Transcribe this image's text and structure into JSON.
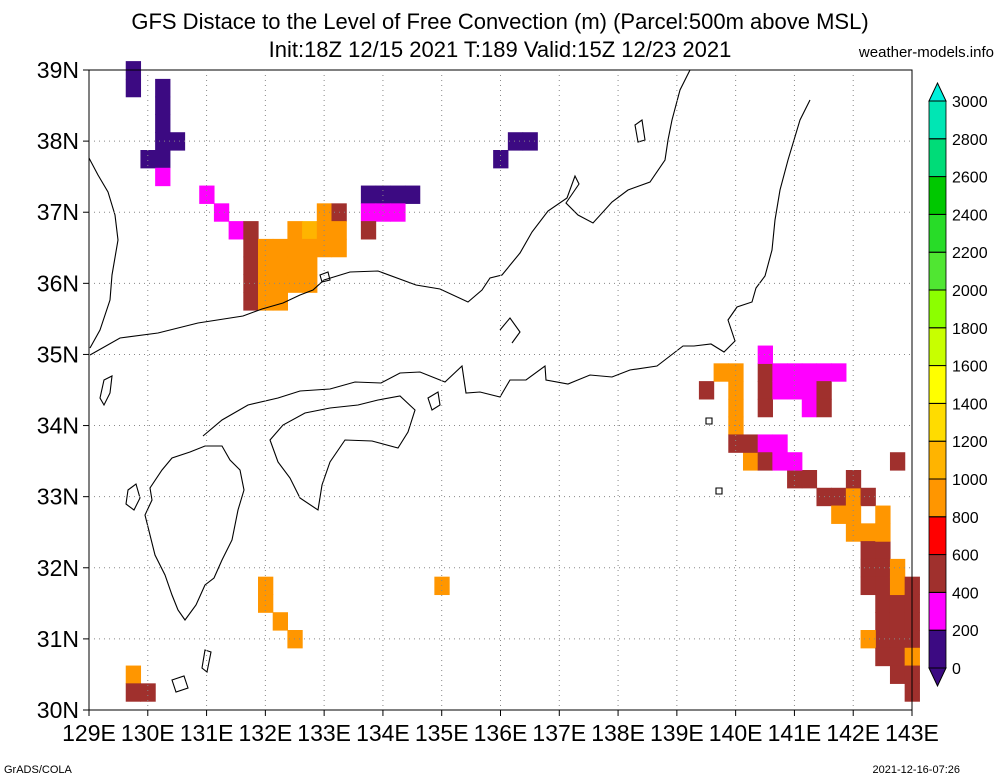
{
  "header": {
    "title": "GFS Distace to the Level of Free Convection (m) (Parcel:500m above MSL)",
    "subtitle": "Init:18Z 12/15 2021 T:189 Valid:15Z 12/23 2021",
    "site": "weather-models.info"
  },
  "footer": {
    "left": "GrADS/COLA",
    "right": "2021-12-16-07:26"
  },
  "map": {
    "lon_labels": [
      "129E",
      "130E",
      "131E",
      "132E",
      "133E",
      "134E",
      "135E",
      "136E",
      "137E",
      "138E",
      "139E",
      "140E",
      "141E",
      "142E",
      "143E"
    ],
    "lat_labels": [
      "30N",
      "31N",
      "32N",
      "33N",
      "34N",
      "35N",
      "36N",
      "37N",
      "38N",
      "39N"
    ]
  },
  "colorbar": {
    "labels": [
      "0",
      "200",
      "400",
      "600",
      "800",
      "1000",
      "1200",
      "1400",
      "1600",
      "1800",
      "2000",
      "2200",
      "2400",
      "2600",
      "2800",
      "3000"
    ],
    "colors": [
      "#3c0a82",
      "#ff00ff",
      "#a0302d",
      "#ff0000",
      "#ff9600",
      "#ffb400",
      "#ffdc00",
      "#ffff00",
      "#c8ff00",
      "#8cff00",
      "#50e632",
      "#28dc28",
      "#00c800",
      "#00dc78",
      "#00e6b4",
      "#00f0dc"
    ]
  },
  "cells": [
    {
      "lat": 38.75,
      "lon": 129.75,
      "v": 0
    },
    {
      "lat": 38.75,
      "lon": 130.25,
      "v": 0
    },
    {
      "lat": 38.5,
      "lon": 130.25,
      "v": 0
    },
    {
      "lat": 38.25,
      "lon": 130.25,
      "v": 0
    },
    {
      "lat": 38.0,
      "lon": 130.25,
      "v": 0
    },
    {
      "lat": 38.0,
      "lon": 130.5,
      "v": 0
    },
    {
      "lat": 39.0,
      "lon": 129.75,
      "v": 100
    },
    {
      "lat": 37.75,
      "lon": 130.0,
      "v": 100
    },
    {
      "lat": 37.75,
      "lon": 130.25,
      "v": 0
    },
    {
      "lat": 37.5,
      "lon": 130.25,
      "v": 300
    },
    {
      "lat": 37.25,
      "lon": 131.0,
      "v": 300
    },
    {
      "lat": 37.0,
      "lon": 131.25,
      "v": 300
    },
    {
      "lat": 36.75,
      "lon": 131.5,
      "v": 300
    },
    {
      "lat": 36.75,
      "lon": 131.75,
      "v": 500
    },
    {
      "lat": 36.5,
      "lon": 131.75,
      "v": 500
    },
    {
      "lat": 36.25,
      "lon": 131.75,
      "v": 500
    },
    {
      "lat": 36.0,
      "lon": 131.75,
      "v": 500
    },
    {
      "lat": 35.75,
      "lon": 131.75,
      "v": 500
    },
    {
      "lat": 36.5,
      "lon": 132.0,
      "v": 900
    },
    {
      "lat": 36.25,
      "lon": 132.0,
      "v": 900
    },
    {
      "lat": 36.0,
      "lon": 132.0,
      "v": 900
    },
    {
      "lat": 35.75,
      "lon": 132.0,
      "v": 900
    },
    {
      "lat": 36.5,
      "lon": 132.25,
      "v": 900
    },
    {
      "lat": 36.25,
      "lon": 132.25,
      "v": 900
    },
    {
      "lat": 36.0,
      "lon": 132.25,
      "v": 900
    },
    {
      "lat": 35.75,
      "lon": 132.25,
      "v": 900
    },
    {
      "lat": 36.75,
      "lon": 132.5,
      "v": 900
    },
    {
      "lat": 36.5,
      "lon": 132.5,
      "v": 900
    },
    {
      "lat": 36.25,
      "lon": 132.5,
      "v": 900
    },
    {
      "lat": 36.0,
      "lon": 132.5,
      "v": 900
    },
    {
      "lat": 36.75,
      "lon": 132.75,
      "v": 1100
    },
    {
      "lat": 36.5,
      "lon": 132.75,
      "v": 900
    },
    {
      "lat": 36.25,
      "lon": 132.75,
      "v": 900
    },
    {
      "lat": 36.0,
      "lon": 132.75,
      "v": 900
    },
    {
      "lat": 37.0,
      "lon": 133.0,
      "v": 900
    },
    {
      "lat": 36.75,
      "lon": 133.0,
      "v": 900
    },
    {
      "lat": 36.5,
      "lon": 133.0,
      "v": 900
    },
    {
      "lat": 37.0,
      "lon": 133.25,
      "v": 500
    },
    {
      "lat": 36.75,
      "lon": 133.25,
      "v": 900
    },
    {
      "lat": 36.5,
      "lon": 133.25,
      "v": 900
    },
    {
      "lat": 37.25,
      "lon": 133.75,
      "v": 100
    },
    {
      "lat": 37.25,
      "lon": 134.0,
      "v": 0
    },
    {
      "lat": 37.25,
      "lon": 134.25,
      "v": 0
    },
    {
      "lat": 37.25,
      "lon": 134.5,
      "v": 0
    },
    {
      "lat": 37.0,
      "lon": 133.75,
      "v": 300
    },
    {
      "lat": 37.0,
      "lon": 134.0,
      "v": 300
    },
    {
      "lat": 37.0,
      "lon": 134.25,
      "v": 300
    },
    {
      "lat": 36.75,
      "lon": 133.75,
      "v": 500
    },
    {
      "lat": 38.0,
      "lon": 136.25,
      "v": 100
    },
    {
      "lat": 38.0,
      "lon": 136.5,
      "v": 100
    },
    {
      "lat": 37.75,
      "lon": 136.0,
      "v": 100
    },
    {
      "lat": 31.75,
      "lon": 132.0,
      "v": 900
    },
    {
      "lat": 31.5,
      "lon": 132.0,
      "v": 900
    },
    {
      "lat": 31.25,
      "lon": 132.25,
      "v": 900
    },
    {
      "lat": 31.0,
      "lon": 132.5,
      "v": 900
    },
    {
      "lat": 31.75,
      "lon": 135.0,
      "v": 900
    },
    {
      "lat": 30.5,
      "lon": 129.75,
      "v": 900
    },
    {
      "lat": 30.25,
      "lon": 129.75,
      "v": 500
    },
    {
      "lat": 30.25,
      "lon": 130.0,
      "v": 500
    },
    {
      "lat": 34.5,
      "lon": 139.5,
      "v": 500
    },
    {
      "lat": 34.75,
      "lon": 139.75,
      "v": 900
    },
    {
      "lat": 34.75,
      "lon": 140.0,
      "v": 900
    },
    {
      "lat": 34.5,
      "lon": 140.0,
      "v": 900
    },
    {
      "lat": 34.25,
      "lon": 140.0,
      "v": 900
    },
    {
      "lat": 34.0,
      "lon": 140.0,
      "v": 900
    },
    {
      "lat": 33.75,
      "lon": 140.0,
      "v": 500
    },
    {
      "lat": 33.5,
      "lon": 140.25,
      "v": 900
    },
    {
      "lat": 34.75,
      "lon": 140.5,
      "v": 500
    },
    {
      "lat": 34.5,
      "lon": 140.5,
      "v": 500
    },
    {
      "lat": 34.25,
      "lon": 140.5,
      "v": 500
    },
    {
      "lat": 35.0,
      "lon": 140.5,
      "v": 300
    },
    {
      "lat": 34.75,
      "lon": 140.75,
      "v": 300
    },
    {
      "lat": 34.5,
      "lon": 140.75,
      "v": 300
    },
    {
      "lat": 34.75,
      "lon": 141.0,
      "v": 300
    },
    {
      "lat": 34.5,
      "lon": 141.0,
      "v": 300
    },
    {
      "lat": 34.75,
      "lon": 141.25,
      "v": 300
    },
    {
      "lat": 34.5,
      "lon": 141.25,
      "v": 300
    },
    {
      "lat": 34.25,
      "lon": 141.25,
      "v": 300
    },
    {
      "lat": 34.75,
      "lon": 141.5,
      "v": 300
    },
    {
      "lat": 34.5,
      "lon": 141.5,
      "v": 500
    },
    {
      "lat": 34.25,
      "lon": 141.5,
      "v": 500
    },
    {
      "lat": 34.75,
      "lon": 141.75,
      "v": 300
    },
    {
      "lat": 33.75,
      "lon": 140.25,
      "v": 500
    },
    {
      "lat": 33.75,
      "lon": 140.5,
      "v": 300
    },
    {
      "lat": 33.5,
      "lon": 140.5,
      "v": 500
    },
    {
      "lat": 33.75,
      "lon": 140.75,
      "v": 300
    },
    {
      "lat": 33.5,
      "lon": 140.75,
      "v": 300
    },
    {
      "lat": 33.25,
      "lon": 141.0,
      "v": 500
    },
    {
      "lat": 33.25,
      "lon": 141.25,
      "v": 500
    },
    {
      "lat": 33.5,
      "lon": 141.0,
      "v": 300
    },
    {
      "lat": 33.0,
      "lon": 141.5,
      "v": 500
    },
    {
      "lat": 33.0,
      "lon": 141.75,
      "v": 500
    },
    {
      "lat": 33.0,
      "lon": 142.0,
      "v": 900
    },
    {
      "lat": 33.0,
      "lon": 142.25,
      "v": 500
    },
    {
      "lat": 33.25,
      "lon": 142.0,
      "v": 500
    },
    {
      "lat": 33.5,
      "lon": 142.75,
      "v": 500
    },
    {
      "lat": 32.75,
      "lon": 141.75,
      "v": 900
    },
    {
      "lat": 32.75,
      "lon": 142.0,
      "v": 900
    },
    {
      "lat": 32.5,
      "lon": 142.0,
      "v": 900
    },
    {
      "lat": 32.5,
      "lon": 142.25,
      "v": 900
    },
    {
      "lat": 32.25,
      "lon": 142.25,
      "v": 500
    },
    {
      "lat": 32.25,
      "lon": 142.5,
      "v": 500
    },
    {
      "lat": 32.5,
      "lon": 142.5,
      "v": 900
    },
    {
      "lat": 32.75,
      "lon": 142.5,
      "v": 900
    },
    {
      "lat": 32.0,
      "lon": 142.25,
      "v": 500
    },
    {
      "lat": 32.0,
      "lon": 142.5,
      "v": 500
    },
    {
      "lat": 31.75,
      "lon": 142.25,
      "v": 500
    },
    {
      "lat": 31.75,
      "lon": 142.5,
      "v": 500
    },
    {
      "lat": 31.5,
      "lon": 142.5,
      "v": 500
    },
    {
      "lat": 31.25,
      "lon": 142.5,
      "v": 500
    },
    {
      "lat": 31.5,
      "lon": 142.75,
      "v": 500
    },
    {
      "lat": 31.25,
      "lon": 142.75,
      "v": 500
    },
    {
      "lat": 31.0,
      "lon": 142.5,
      "v": 500
    },
    {
      "lat": 31.0,
      "lon": 142.75,
      "v": 500
    },
    {
      "lat": 30.75,
      "lon": 142.75,
      "v": 500
    },
    {
      "lat": 30.5,
      "lon": 142.75,
      "v": 500
    },
    {
      "lat": 31.75,
      "lon": 142.75,
      "v": 900
    },
    {
      "lat": 32.0,
      "lon": 142.75,
      "v": 900
    },
    {
      "lat": 31.75,
      "lon": 143.0,
      "v": 500
    },
    {
      "lat": 31.5,
      "lon": 143.0,
      "v": 500
    },
    {
      "lat": 31.25,
      "lon": 143.0,
      "v": 500
    },
    {
      "lat": 31.0,
      "lon": 143.0,
      "v": 500
    },
    {
      "lat": 30.75,
      "lon": 143.0,
      "v": 900
    },
    {
      "lat": 30.5,
      "lon": 143.0,
      "v": 500
    },
    {
      "lat": 30.25,
      "lon": 143.0,
      "v": 500
    },
    {
      "lat": 31.0,
      "lon": 142.25,
      "v": 900
    },
    {
      "lat": 30.75,
      "lon": 142.5,
      "v": 500
    }
  ]
}
